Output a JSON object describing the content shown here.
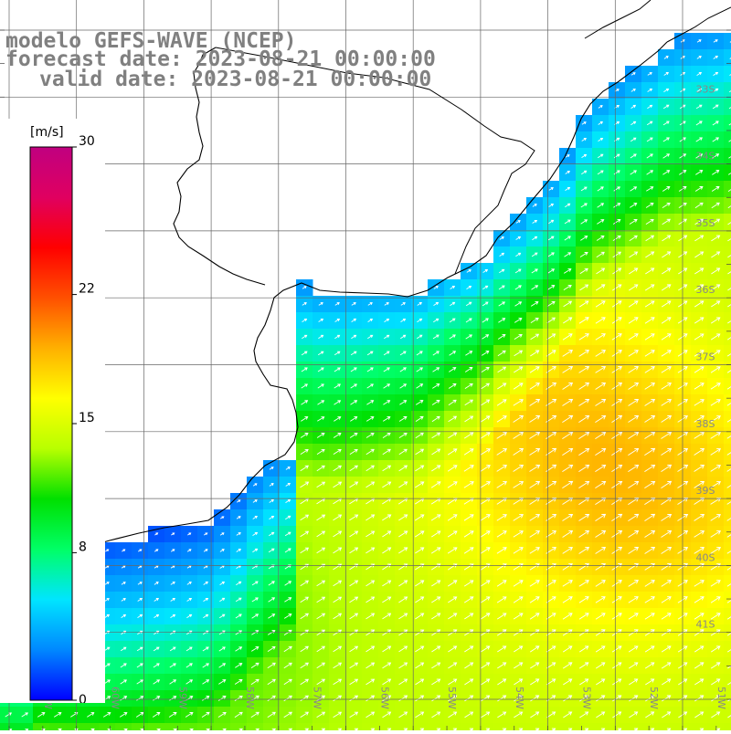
{
  "header": {
    "title": "modelo GEFS-WAVE (NCEP)",
    "forecast": "forecast date: 2023-08-21 00:00:00",
    "valid": "valid date: 2023-08-21 00:00:00"
  },
  "colorbar": {
    "unit": "[m/s]",
    "ticks": [
      "30",
      "22",
      "15",
      "8",
      "0"
    ],
    "colors": [
      "#0000ff",
      "#0088ff",
      "#00e5ff",
      "#00ff66",
      "#00e000",
      "#b8ff00",
      "#ffff00",
      "#ffb000",
      "#ff5000",
      "#ff0000",
      "#e00060",
      "#c00080"
    ]
  },
  "latitudes": [
    "33S",
    "34S",
    "35S",
    "36S",
    "37S",
    "38S",
    "39S",
    "40S",
    "41S"
  ],
  "longitudes": [
    "61W",
    "60W",
    "59W",
    "58W",
    "57W",
    "56W",
    "55W",
    "54W",
    "53W",
    "52W",
    "51W"
  ],
  "field": {
    "variable": "wind speed",
    "unit": "m/s",
    "range": [
      0,
      30
    ],
    "wind_direction": "from SW toward NE"
  }
}
